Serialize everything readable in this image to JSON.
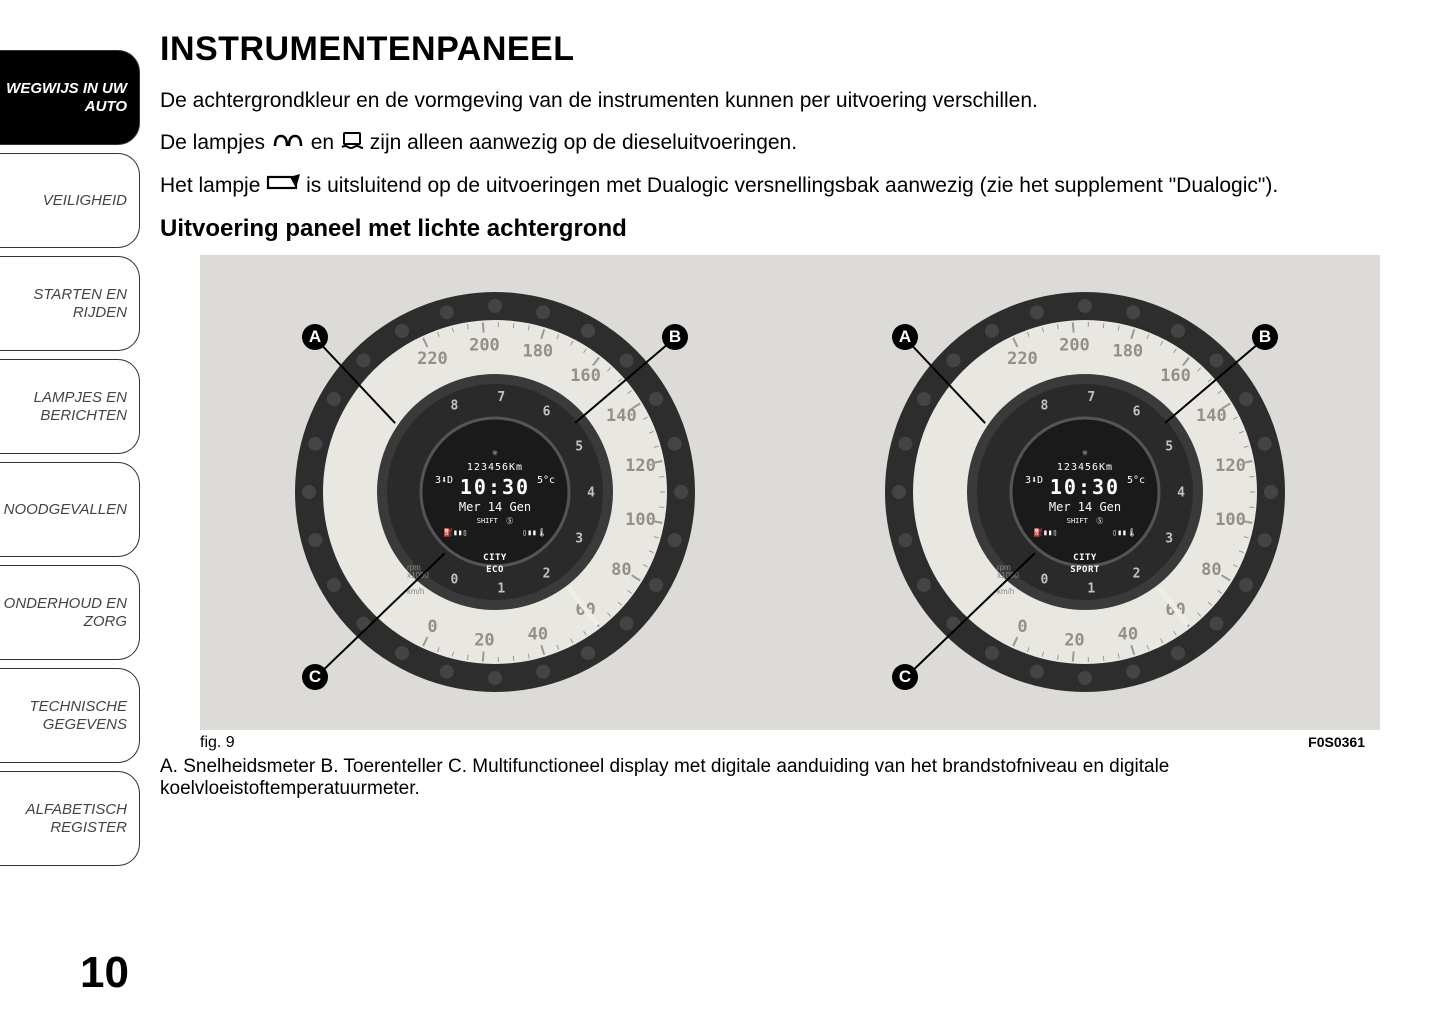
{
  "sidebar": {
    "tabs": [
      {
        "label": "WEGWIJS IN UW AUTO",
        "active": true
      },
      {
        "label": "VEILIGHEID",
        "active": false
      },
      {
        "label": "STARTEN EN RIJDEN",
        "active": false
      },
      {
        "label": "LAMPJES EN BERICHTEN",
        "active": false
      },
      {
        "label": "NOODGEVALLEN",
        "active": false
      },
      {
        "label": "ONDERHOUD EN ZORG",
        "active": false
      },
      {
        "label": "TECHNISCHE GEGEVENS",
        "active": false
      },
      {
        "label": "ALFABETISCH REGISTER",
        "active": false
      }
    ]
  },
  "heading": "INSTRUMENTENPANEEL",
  "para1": "De achtergrondkleur en de vormgeving van de instrumenten kunnen per uitvoering verschillen.",
  "para2a": "De lampjes ",
  "para2b": " en ",
  "para2c": " zijn alleen aanwezig op de dieseluitvoeringen.",
  "para3a": "Het lampje ",
  "para3b": " is uitsluitend op de uitvoeringen met Dualogic versnellingsbak aanwezig (zie het supplement \"Dualogic\").",
  "subheading": "Uitvoering paneel met lichte achtergrond",
  "figure": {
    "caption_left": "fig. 9",
    "caption_right": "F0S0361",
    "legend": "A. Snelheidsmeter B. Toerenteller C. Multifunctioneel display met digitale aanduiding van het brandstofniveau en digitale koelvloeistoftemperatuurmeter.",
    "gauges": [
      {
        "mode_line1": "CITY",
        "mode_line2": "ECO"
      },
      {
        "mode_line1": "CITY",
        "mode_line2": "SPORT"
      }
    ],
    "display": {
      "km": "123456Km",
      "gear_temp": "3⬇D  10:30  5°c",
      "time": "10:30",
      "date": "Mer 14 Gen",
      "shift": "SHIFT"
    },
    "speed_dial": {
      "values": [
        0,
        20,
        40,
        60,
        80,
        100,
        120,
        140,
        160,
        180,
        200,
        220
      ],
      "color_outer_ring": "#2f2f2f",
      "color_dial_face": "#e9e7e1",
      "color_num": "#858179"
    },
    "tach_dial": {
      "values": [
        0,
        1,
        2,
        3,
        4,
        5,
        6,
        7,
        8
      ],
      "units_top": "rpm",
      "units_bot": "x1000",
      "units_kmh": "km/h",
      "color_ring": "#333333",
      "color_num": "#dddddd"
    },
    "callouts": [
      "A",
      "B",
      "C"
    ],
    "colors": {
      "figure_bg": "#dcdbd7",
      "outer_dark": "#2d2d2d",
      "mid_dark": "#3a3a3a",
      "display_bg": "#1a1a1a",
      "text_white": "#ffffff",
      "needle": "#eeeee8"
    }
  },
  "page_number": "10"
}
